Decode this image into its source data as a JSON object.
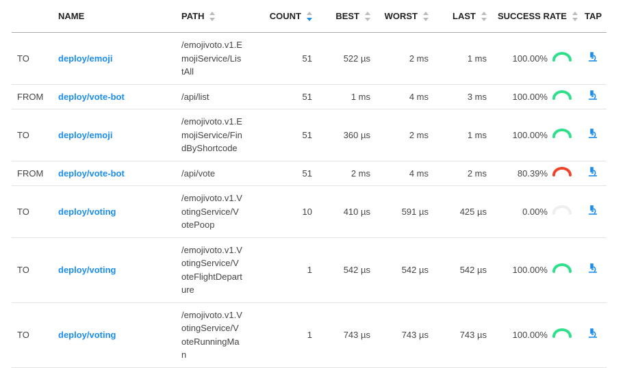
{
  "headers": {
    "direction": "",
    "name": "NAME",
    "path": "PATH",
    "count": "COUNT",
    "best": "BEST",
    "worst": "WORST",
    "last": "LAST",
    "success_rate": "SUCCESS RATE",
    "tap": "TAP"
  },
  "sorted_by": "count",
  "colors": {
    "link": "#1b8df0",
    "success": "#2ee08a",
    "failure": "#f0432a",
    "empty": "#eeeeee",
    "sort_active": "#1b8df0"
  },
  "rows": [
    {
      "direction": "TO",
      "name": "deploy/emoji",
      "path": "/emojivoto.v1.EmojiService/ListAll",
      "count": "51",
      "best": "522 µs",
      "worst": "2 ms",
      "last": "1 ms",
      "success_rate": "100.00%",
      "success_value": 100,
      "tap_icon": "microscope-icon"
    },
    {
      "direction": "FROM",
      "name": "deploy/vote-bot",
      "path": "/api/list",
      "count": "51",
      "best": "1 ms",
      "worst": "4 ms",
      "last": "3 ms",
      "success_rate": "100.00%",
      "success_value": 100,
      "tap_icon": "microscope-icon"
    },
    {
      "direction": "TO",
      "name": "deploy/emoji",
      "path": "/emojivoto.v1.EmojiService/FindByShortcode",
      "count": "51",
      "best": "360 µs",
      "worst": "2 ms",
      "last": "1 ms",
      "success_rate": "100.00%",
      "success_value": 100,
      "tap_icon": "microscope-icon"
    },
    {
      "direction": "FROM",
      "name": "deploy/vote-bot",
      "path": "/api/vote",
      "count": "51",
      "best": "2 ms",
      "worst": "4 ms",
      "last": "2 ms",
      "success_rate": "80.39%",
      "success_value": 80.39,
      "tap_icon": "microscope-icon"
    },
    {
      "direction": "TO",
      "name": "deploy/voting",
      "path": "/emojivoto.v1.VotingService/VotePoop",
      "count": "10",
      "best": "410 µs",
      "worst": "591 µs",
      "last": "425 µs",
      "success_rate": "0.00%",
      "success_value": 0,
      "tap_icon": "microscope-icon"
    },
    {
      "direction": "TO",
      "name": "deploy/voting",
      "path": "/emojivoto.v1.VotingService/VoteFlightDeparture",
      "count": "1",
      "best": "542 µs",
      "worst": "542 µs",
      "last": "542 µs",
      "success_rate": "100.00%",
      "success_value": 100,
      "tap_icon": "microscope-icon"
    },
    {
      "direction": "TO",
      "name": "deploy/voting",
      "path": "/emojivoto.v1.VotingService/VoteRunningMan",
      "count": "1",
      "best": "743 µs",
      "worst": "743 µs",
      "last": "743 µs",
      "success_rate": "100.00%",
      "success_value": 100,
      "tap_icon": "microscope-icon"
    }
  ]
}
